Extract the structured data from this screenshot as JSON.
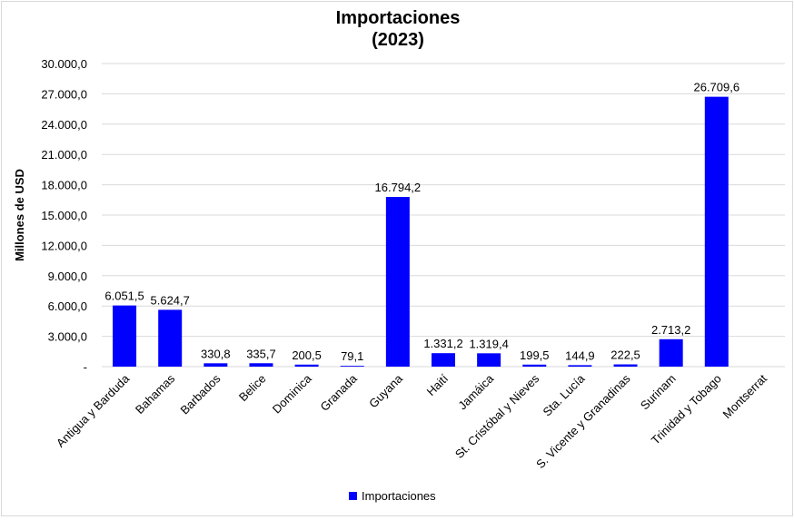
{
  "chart_data": {
    "type": "bar",
    "title": "Importaciones",
    "subtitle": "(2023)",
    "xlabel": "",
    "ylabel": "Millones de USD",
    "ylim": [
      0,
      30000
    ],
    "yticks": [
      0,
      3000,
      6000,
      9000,
      12000,
      15000,
      18000,
      21000,
      24000,
      27000,
      30000
    ],
    "ytick_labels": [
      "-",
      "3.000,0",
      "6.000,0",
      "9.000,0",
      "12.000,0",
      "15.000,0",
      "18.000,0",
      "21.000,0",
      "24.000,0",
      "27.000,0",
      "30.000,0"
    ],
    "grid": true,
    "legend_position": "bottom",
    "categories": [
      "Antigua y Barduda",
      "Bahamas",
      "Barbados",
      "Belice",
      "Dominica",
      "Granada",
      "Guyana",
      "Haití",
      "Jamáica",
      "St. Cristóbal y Nieves",
      "Sta. Lucía",
      "S. Vicente y Granadinas",
      "Surinam",
      "Trinidad y Tobago",
      "Montserrat"
    ],
    "series": [
      {
        "name": "Importaciones",
        "color": "#0000ff",
        "values": [
          6051.5,
          5624.7,
          330.8,
          335.7,
          200.5,
          79.1,
          16794.2,
          1331.2,
          1319.4,
          199.5,
          144.9,
          222.5,
          2713.2,
          26709.6,
          null
        ],
        "labels": [
          "6.051,5",
          "5.624,7",
          "330,8",
          "335,7",
          "200,5",
          "79,1",
          "16.794,2",
          "1.331,2",
          "1.319,4",
          "199,5",
          "144,9",
          "222,5",
          "2.713,2",
          "26.709,6",
          ""
        ]
      }
    ]
  }
}
